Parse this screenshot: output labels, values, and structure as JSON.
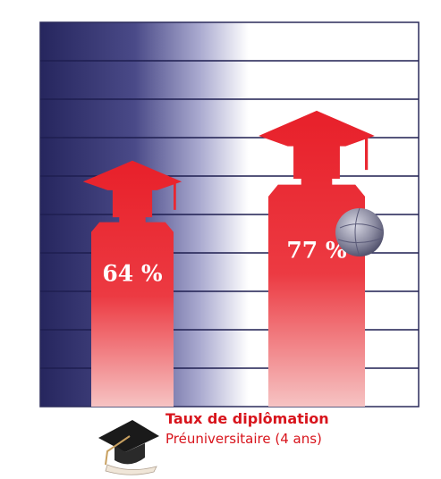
{
  "chart_data": {
    "type": "pictograph",
    "title": "Taux de diplômation",
    "subtitle": "Préuniversitaire (4 ans)",
    "values": [
      64,
      77
    ],
    "value_labels": [
      "64 %",
      "77 %"
    ],
    "color": "#e8202a",
    "ylim": [
      0,
      100
    ],
    "grid": true
  }
}
